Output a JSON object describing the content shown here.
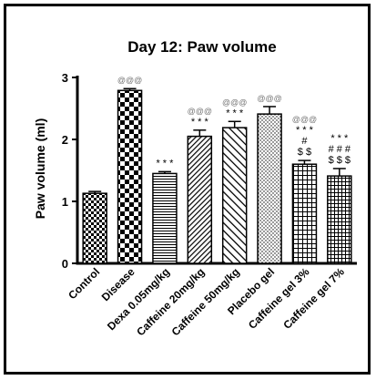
{
  "chart_data": {
    "type": "bar",
    "title": "Day 12: Paw volume",
    "ylabel": "Paw volume (ml)",
    "xlabel": "",
    "ylim": [
      0,
      3
    ],
    "yticks": [
      "0",
      "1",
      "2",
      "3"
    ],
    "grid": false,
    "categories": [
      "Control",
      "Disease",
      "Dexa 0.05mg/kg",
      "Caffeine 20mg/kg",
      "Caffeine 50mg/kg",
      "Placebo gel",
      "Caffeine gel 3%",
      "Caffeine gel 7%"
    ],
    "values": [
      1.13,
      2.79,
      1.45,
      2.05,
      2.19,
      2.41,
      1.6,
      1.41
    ],
    "errors": [
      0.03,
      0.03,
      0.03,
      0.1,
      0.1,
      0.12,
      0.06,
      0.12
    ],
    "patterns": [
      "checker-small",
      "checker-large",
      "horizontal-lines",
      "diagonal-narrow",
      "diagonal-wide",
      "dots",
      "grid",
      "grid-fine"
    ],
    "annotations": [
      {
        "category": "Disease",
        "lines": [
          {
            "text": "@@@",
            "tone": "gray"
          }
        ]
      },
      {
        "category": "Dexa 0.05mg/kg",
        "lines": [
          {
            "text": "* * *",
            "tone": "black"
          }
        ]
      },
      {
        "category": "Caffeine 20mg/kg",
        "lines": [
          {
            "text": "@@@",
            "tone": "gray"
          },
          {
            "text": "* * *",
            "tone": "black"
          }
        ]
      },
      {
        "category": "Caffeine 50mg/kg",
        "lines": [
          {
            "text": "@@@",
            "tone": "gray"
          },
          {
            "text": "* * *",
            "tone": "black"
          }
        ]
      },
      {
        "category": "Placebo gel",
        "lines": [
          {
            "text": "@@@",
            "tone": "gray"
          }
        ]
      },
      {
        "category": "Caffeine gel 3%",
        "lines": [
          {
            "text": "@@@",
            "tone": "gray"
          },
          {
            "text": "* * *",
            "tone": "black"
          },
          {
            "text": "#",
            "tone": "black"
          },
          {
            "text": "$ $",
            "tone": "black"
          }
        ]
      },
      {
        "category": "Caffeine gel 7%",
        "lines": [
          {
            "text": "* * *",
            "tone": "black"
          },
          {
            "text": "# # #",
            "tone": "black"
          },
          {
            "text": "$ $ $",
            "tone": "black"
          }
        ]
      }
    ],
    "colors": {
      "bar_fill": "#ffffff",
      "bar_pattern": "#000000",
      "annotation_gray": "#777777"
    }
  }
}
